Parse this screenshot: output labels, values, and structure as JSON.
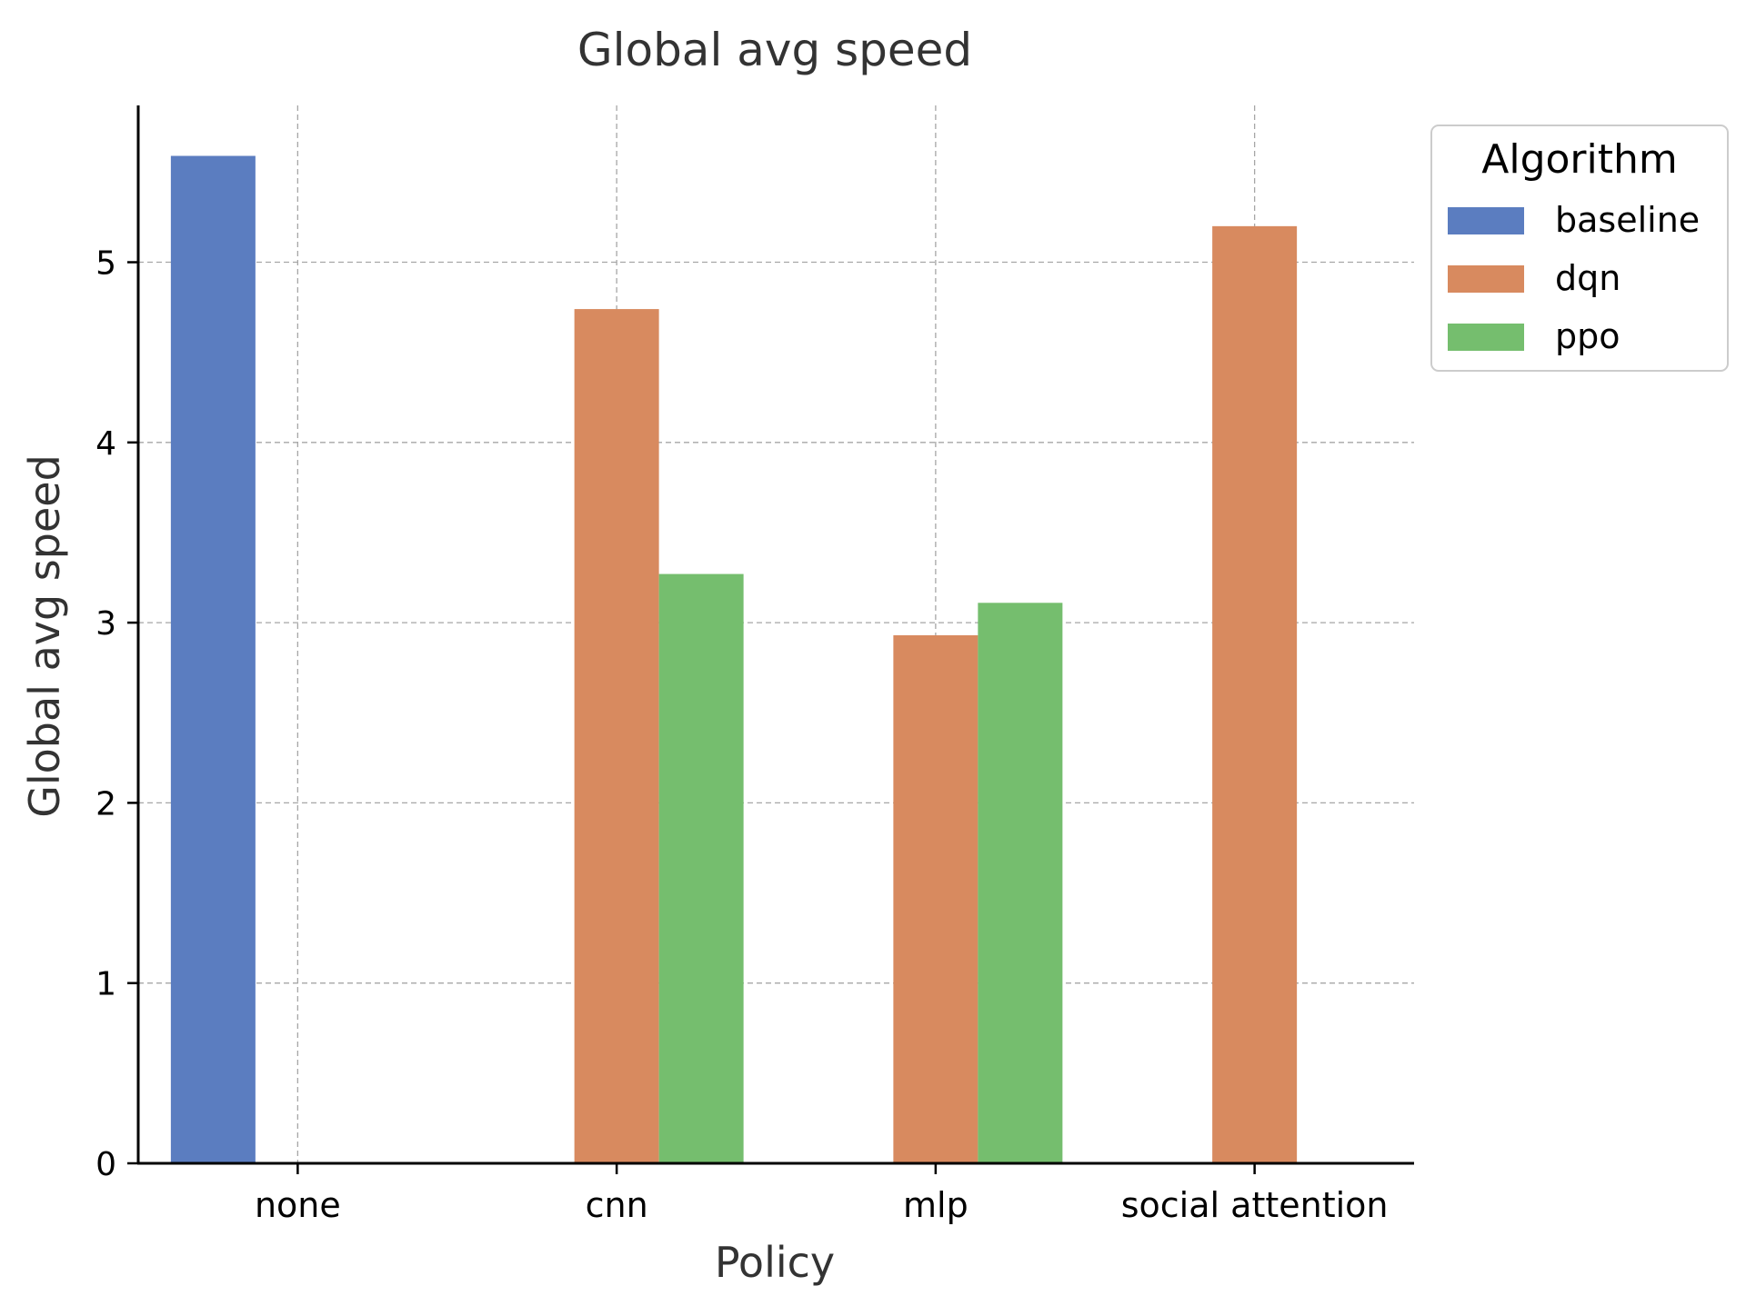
{
  "chart_data": {
    "type": "bar",
    "title": "Global avg speed",
    "xlabel": "Policy",
    "ylabel": "Global avg speed",
    "categories": [
      "none",
      "cnn",
      "mlp",
      "social attention"
    ],
    "ylim": [
      0,
      5.87
    ],
    "yticks": [
      0,
      1,
      2,
      3,
      4,
      5
    ],
    "grid": true,
    "legend": {
      "title": "Algorithm",
      "placement": "upper-right-outside"
    },
    "series": [
      {
        "name": "baseline",
        "color": "#5b7dc0",
        "values": [
          5.59,
          null,
          null,
          null
        ]
      },
      {
        "name": "dqn",
        "color": "#d88a5f",
        "values": [
          null,
          4.74,
          2.93,
          5.2
        ]
      },
      {
        "name": "ppo",
        "color": "#75be6e",
        "values": [
          null,
          3.27,
          3.11,
          null
        ]
      }
    ]
  }
}
